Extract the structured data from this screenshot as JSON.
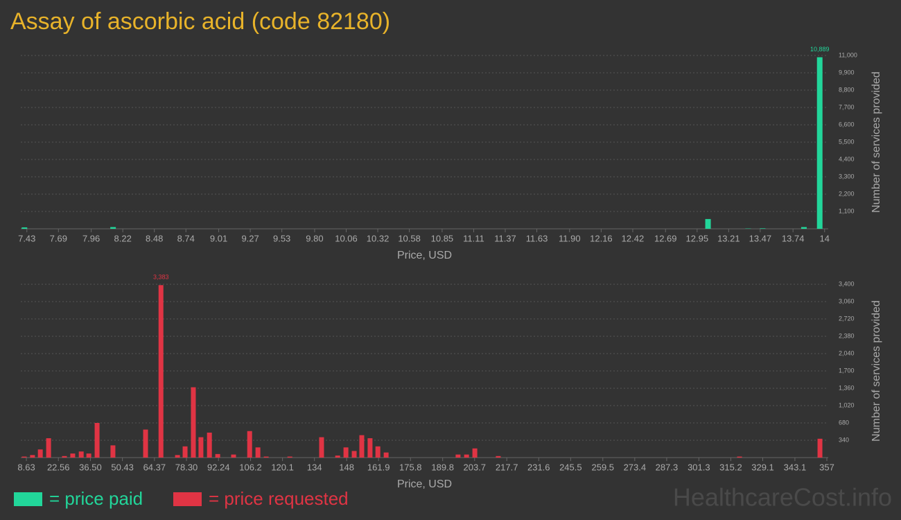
{
  "title": "Assay of ascorbic acid (code 82180)",
  "watermark": "HealthcareCost.info",
  "chart_data": [
    {
      "type": "bar",
      "xlabel": "Price, USD",
      "ylabel": "Number of services provided",
      "x": [
        7.41,
        8.14,
        13.04,
        13.37,
        13.49,
        13.83,
        13.96
      ],
      "series": [
        {
          "name": "= price paid",
          "color": "#22d69a",
          "values": [
            90,
            110,
            620,
            20,
            30,
            110,
            10889
          ],
          "value_labels": [
            null,
            null,
            null,
            null,
            null,
            null,
            "10,889"
          ]
        }
      ],
      "xlim": [
        7.38,
        14.03
      ],
      "xticks": [
        7.43,
        7.69,
        7.96,
        8.22,
        8.48,
        8.74,
        9.01,
        9.27,
        9.53,
        {
          "value": 9.8,
          "label": "9.80"
        },
        10.06,
        10.32,
        10.58,
        10.85,
        11.11,
        11.37,
        11.63,
        {
          "value": 11.9,
          "label": "11.90"
        },
        12.16,
        12.42,
        12.69,
        12.95,
        13.21,
        13.47,
        13.74,
        14
      ],
      "ylim": [
        0,
        11000
      ],
      "yticks": [
        {
          "value": 1100,
          "label": "1,100"
        },
        {
          "value": 2200,
          "label": "2,200"
        },
        {
          "value": 3300,
          "label": "3,300"
        },
        {
          "value": 4400,
          "label": "4,400"
        },
        {
          "value": 5500,
          "label": "5,500"
        },
        {
          "value": 6600,
          "label": "6,600"
        },
        {
          "value": 7700,
          "label": "7,700"
        },
        {
          "value": 8800,
          "label": "8,800"
        },
        {
          "value": 9900,
          "label": "9,900"
        },
        {
          "value": 11000,
          "label": "11,000"
        }
      ],
      "grid": true
    },
    {
      "type": "bar",
      "xlabel": "Price, USD",
      "ylabel": "Number of services provided",
      "x": [
        7.7,
        11.3,
        14.7,
        18.3,
        25.2,
        28.8,
        32.5,
        35.8,
        39.4,
        46.3,
        60.5,
        67.2,
        74.4,
        77.7,
        81.3,
        84.6,
        88.3,
        91.9,
        98.8,
        105.8,
        109.4,
        113.0,
        123.3,
        137.1,
        144.1,
        147.7,
        151.3,
        154.6,
        158.2,
        161.6,
        165.2,
        196.5,
        200.2,
        203.8,
        214.0,
        319.0,
        354.0
      ],
      "series": [
        {
          "name": "= price requested",
          "color": "#e03444",
          "values": [
            20,
            50,
            160,
            380,
            30,
            80,
            120,
            80,
            680,
            240,
            550,
            3383,
            50,
            220,
            1380,
            400,
            490,
            70,
            60,
            520,
            200,
            20,
            20,
            400,
            40,
            200,
            130,
            440,
            380,
            220,
            100,
            60,
            60,
            180,
            30,
            20,
            370
          ],
          "value_labels": [
            null,
            null,
            null,
            null,
            null,
            null,
            null,
            null,
            null,
            null,
            null,
            "3,383",
            null,
            null,
            null,
            null,
            null,
            null,
            null,
            null,
            null,
            null,
            null,
            null,
            null,
            null,
            null,
            null,
            null,
            null,
            null,
            null,
            null,
            null,
            null,
            null,
            null
          ]
        }
      ],
      "xlim": [
        6.2,
        357.6
      ],
      "xticks": [
        8.63,
        22.56,
        {
          "value": 36.5,
          "label": "36.50"
        },
        50.43,
        64.37,
        {
          "value": 78.3,
          "label": "78.30"
        },
        92.24,
        106.2,
        120.1,
        134,
        148,
        161.9,
        175.8,
        189.8,
        203.7,
        217.7,
        231.6,
        245.5,
        259.5,
        273.4,
        287.3,
        301.3,
        315.2,
        329.1,
        343.1,
        357
      ],
      "ylim": [
        0,
        3400
      ],
      "yticks": [
        340,
        680,
        {
          "value": 1020,
          "label": "1,020"
        },
        {
          "value": 1360,
          "label": "1,360"
        },
        {
          "value": 1700,
          "label": "1,700"
        },
        {
          "value": 2040,
          "label": "2,040"
        },
        {
          "value": 2380,
          "label": "2,380"
        },
        {
          "value": 2720,
          "label": "2,720"
        },
        {
          "value": 3060,
          "label": "3,060"
        },
        {
          "value": 3400,
          "label": "3,400"
        }
      ],
      "grid": true
    }
  ]
}
